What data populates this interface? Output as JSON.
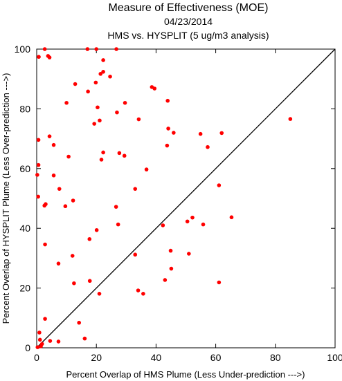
{
  "chart_data": {
    "type": "scatter",
    "title": "Measure of Effectiveness (MOE)",
    "subtitle": "04/23/2014",
    "subtitle2": "HMS vs. HYSPLIT  (5 ug/m3 analysis)",
    "xlabel": "Percent Overlap of HMS Plume (Less Under-prediction --->)",
    "ylabel": "Percent Overlap of HYSPLIT Plume (Less Over-prediction --->)",
    "xlim": [
      0,
      100
    ],
    "ylim": [
      0,
      100
    ],
    "xticks": [
      0,
      20,
      40,
      60,
      80,
      100
    ],
    "yticks": [
      0,
      20,
      40,
      60,
      80,
      100
    ],
    "grid": false,
    "reference_line": "y = x",
    "marker_color": "#ff0000",
    "line_color": "#000000",
    "points": [
      {
        "x": 2.7,
        "y": 100
      },
      {
        "x": 17,
        "y": 100
      },
      {
        "x": 20,
        "y": 100
      },
      {
        "x": 26.7,
        "y": 100
      },
      {
        "x": 0.7,
        "y": 97.4
      },
      {
        "x": 3.8,
        "y": 97.7
      },
      {
        "x": 4.3,
        "y": 97.2
      },
      {
        "x": 22.3,
        "y": 96.3
      },
      {
        "x": 22.3,
        "y": 92.4
      },
      {
        "x": 21.4,
        "y": 91.7
      },
      {
        "x": 24.6,
        "y": 90.8
      },
      {
        "x": 12.9,
        "y": 88.3
      },
      {
        "x": 19.8,
        "y": 88.8
      },
      {
        "x": 38.6,
        "y": 87.3
      },
      {
        "x": 39.5,
        "y": 86.8
      },
      {
        "x": 17.2,
        "y": 85.8
      },
      {
        "x": 43.9,
        "y": 82.7
      },
      {
        "x": 10.0,
        "y": 82.0
      },
      {
        "x": 29.6,
        "y": 82.0
      },
      {
        "x": 20.4,
        "y": 80.5
      },
      {
        "x": 26.9,
        "y": 78.8
      },
      {
        "x": 85.0,
        "y": 76.6
      },
      {
        "x": 34.2,
        "y": 76.5
      },
      {
        "x": 21.1,
        "y": 76.1
      },
      {
        "x": 19.3,
        "y": 75.0
      },
      {
        "x": 44.1,
        "y": 73.4
      },
      {
        "x": 45.9,
        "y": 72.0
      },
      {
        "x": 54.9,
        "y": 71.6
      },
      {
        "x": 62.0,
        "y": 71.9
      },
      {
        "x": 4.3,
        "y": 70.8
      },
      {
        "x": 0.6,
        "y": 69.6
      },
      {
        "x": 5.7,
        "y": 67.9
      },
      {
        "x": 43.7,
        "y": 67.7
      },
      {
        "x": 57.3,
        "y": 67.2
      },
      {
        "x": 22.3,
        "y": 65.4
      },
      {
        "x": 27.7,
        "y": 65.2
      },
      {
        "x": 29.4,
        "y": 64.3
      },
      {
        "x": 10.7,
        "y": 64.0
      },
      {
        "x": 21.7,
        "y": 63.0
      },
      {
        "x": 0.6,
        "y": 61.2
      },
      {
        "x": 36.8,
        "y": 59.7
      },
      {
        "x": 0.2,
        "y": 57.9
      },
      {
        "x": 5.7,
        "y": 57.7
      },
      {
        "x": 61.1,
        "y": 54.4
      },
      {
        "x": 7.6,
        "y": 53.2
      },
      {
        "x": 33.0,
        "y": 53.2
      },
      {
        "x": 0.5,
        "y": 50.6
      },
      {
        "x": 12.2,
        "y": 49.3
      },
      {
        "x": 3.0,
        "y": 48.1
      },
      {
        "x": 2.6,
        "y": 47.6
      },
      {
        "x": 9.6,
        "y": 47.4
      },
      {
        "x": 26.6,
        "y": 47.2
      },
      {
        "x": 65.3,
        "y": 43.7
      },
      {
        "x": 52.2,
        "y": 43.6
      },
      {
        "x": 50.5,
        "y": 42.3
      },
      {
        "x": 55.8,
        "y": 41.3
      },
      {
        "x": 27.3,
        "y": 41.3
      },
      {
        "x": 42.3,
        "y": 41.0
      },
      {
        "x": 20.1,
        "y": 39.4
      },
      {
        "x": 17.7,
        "y": 36.4
      },
      {
        "x": 2.8,
        "y": 34.6
      },
      {
        "x": 44.9,
        "y": 32.5
      },
      {
        "x": 33.0,
        "y": 31.2
      },
      {
        "x": 51.0,
        "y": 31.5
      },
      {
        "x": 12.0,
        "y": 30.8
      },
      {
        "x": 7.3,
        "y": 28.2
      },
      {
        "x": 45.1,
        "y": 26.5
      },
      {
        "x": 43.0,
        "y": 22.7
      },
      {
        "x": 17.8,
        "y": 22.4
      },
      {
        "x": 61.1,
        "y": 21.9
      },
      {
        "x": 12.5,
        "y": 21.6
      },
      {
        "x": 34.0,
        "y": 19.2
      },
      {
        "x": 35.7,
        "y": 18.1
      },
      {
        "x": 21.0,
        "y": 18.1
      },
      {
        "x": 2.8,
        "y": 9.7
      },
      {
        "x": 14.2,
        "y": 8.4
      },
      {
        "x": 0.9,
        "y": 5.1
      },
      {
        "x": 16.1,
        "y": 3.1
      },
      {
        "x": 1.1,
        "y": 2.7
      },
      {
        "x": 4.5,
        "y": 2.3
      },
      {
        "x": 7.3,
        "y": 2.1
      },
      {
        "x": 1.8,
        "y": 1.3
      },
      {
        "x": 1.4,
        "y": 0.5
      },
      {
        "x": 0.3,
        "y": 0.2
      }
    ]
  }
}
